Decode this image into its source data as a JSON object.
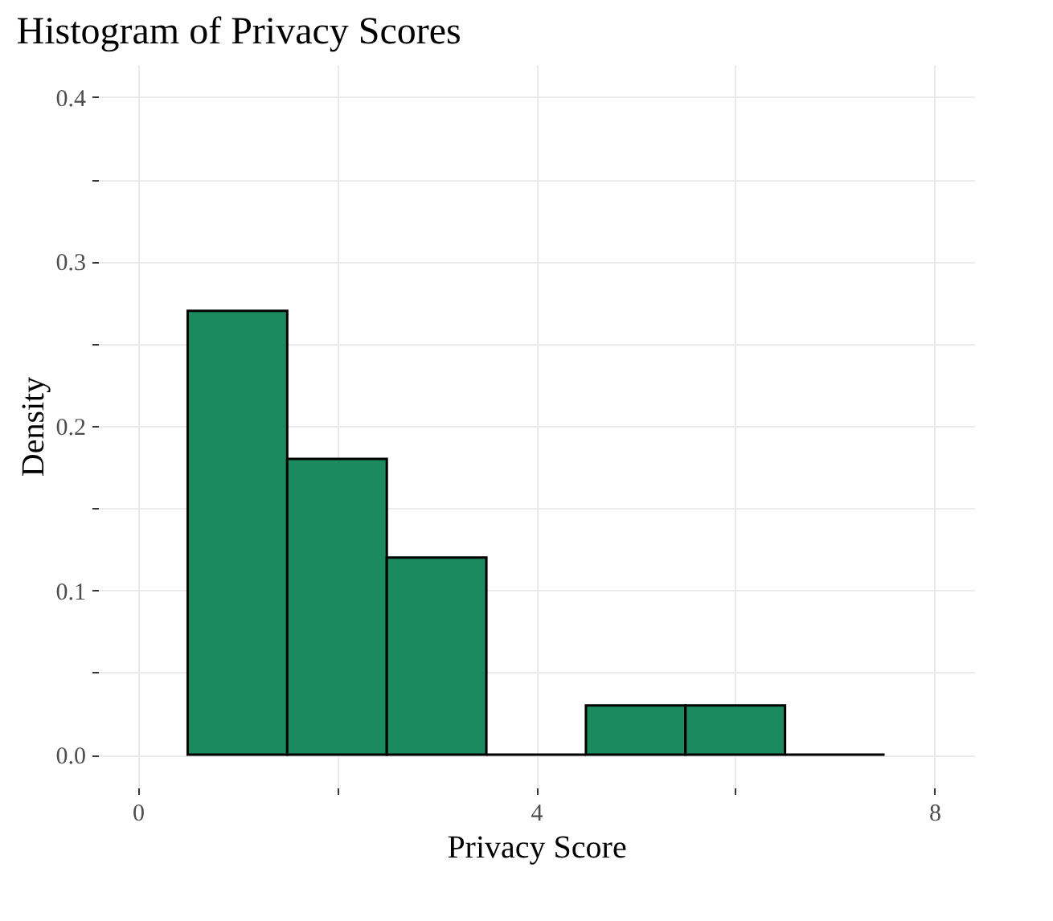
{
  "chart_data": {
    "type": "histogram",
    "title": "Histogram of Privacy Scores",
    "xlabel": "Privacy Score",
    "ylabel": "Density",
    "bins": [
      0.5,
      1.5,
      2.5,
      3.5,
      4.5,
      5.5,
      6.5,
      7.5
    ],
    "values": [
      0.27,
      0.18,
      0.12,
      0,
      0.03,
      0.03,
      0
    ],
    "colors": [
      "#1b8a5e",
      "#1b8a5e",
      "#1b8a5e",
      "#000000",
      "#1b8a5e",
      "#1b8a5e",
      "#000000"
    ],
    "xlim": [
      -0.4,
      8.4
    ],
    "xticks": [
      0,
      {
        "value": 2,
        "label": null
      },
      4,
      {
        "value": 6,
        "label": null
      },
      8
    ],
    "ylim": [
      -0.02,
      0.42
    ],
    "yticks": [
      {
        "value": 0,
        "label": "0.0"
      },
      {
        "value": 0.05,
        "label": null
      },
      0.1,
      {
        "value": 0.15,
        "label": null
      },
      0.2,
      {
        "value": 0.25,
        "label": null
      },
      0.3,
      {
        "value": 0.35,
        "label": null
      },
      0.4
    ],
    "grid": true
  }
}
